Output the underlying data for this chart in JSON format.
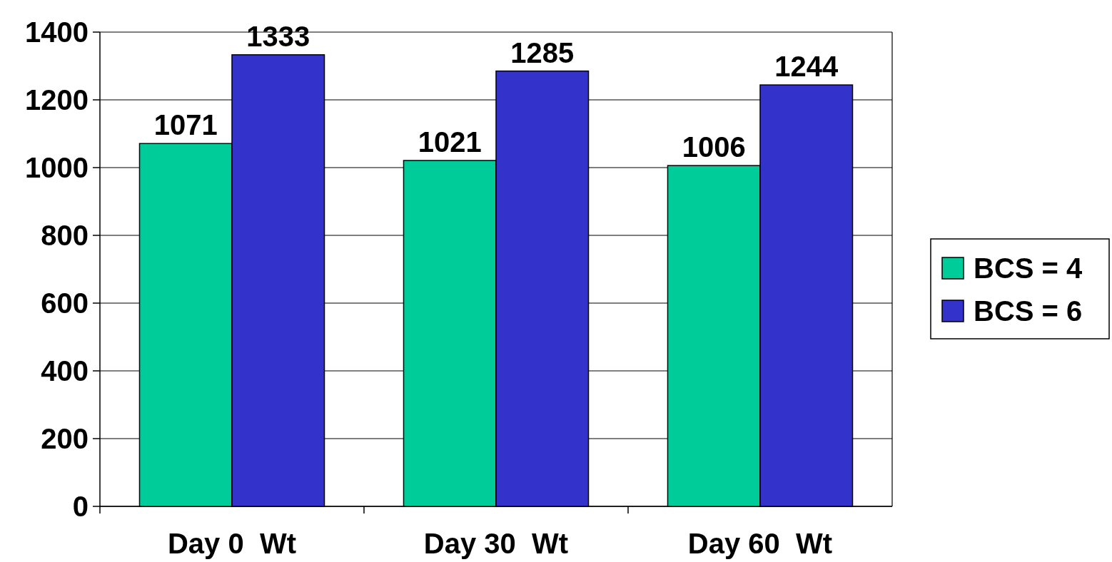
{
  "chart_data": {
    "type": "bar",
    "categories": [
      "Day 0  Wt",
      "Day 30  Wt",
      "Day 60  Wt"
    ],
    "series": [
      {
        "name": "BCS = 4",
        "color": "#00cc99",
        "values": [
          1071,
          1021,
          1006
        ]
      },
      {
        "name": "BCS = 6",
        "color": "#3333cc",
        "values": [
          1333,
          1285,
          1244
        ]
      }
    ],
    "ylim": [
      0,
      1400
    ],
    "yticks": [
      0,
      200,
      400,
      600,
      800,
      1000,
      1200,
      1400
    ],
    "grid": "y",
    "legend": "right",
    "data_labels": true
  }
}
